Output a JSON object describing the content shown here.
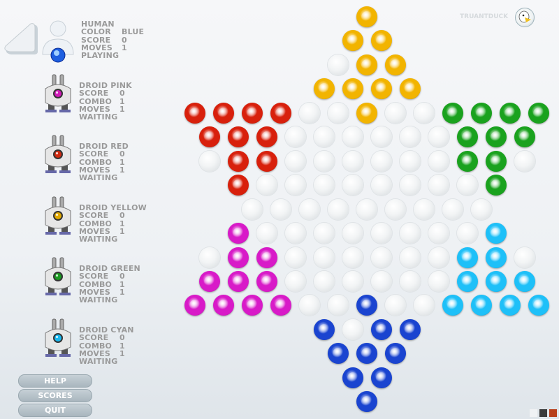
{
  "brand": {
    "label": "TRUANTDUCK",
    "icon": "duck-logo-icon"
  },
  "players": [
    {
      "name": "HUMAN",
      "rows": [
        [
          "COLOR",
          "BLUE"
        ],
        [
          "SCORE",
          "0"
        ],
        [
          "MOVES",
          "1"
        ]
      ],
      "status": "PLAYING",
      "color": "#1e5fe0",
      "avatar": "human-icon"
    },
    {
      "name": "DROID PINK",
      "rows": [
        [
          "SCORE",
          "0"
        ],
        [
          "COMBO",
          "1"
        ],
        [
          "MOVES",
          "1"
        ]
      ],
      "status": "WAITING",
      "color": "#d01ab8",
      "avatar": "droid-icon"
    },
    {
      "name": "DROID RED",
      "rows": [
        [
          "SCORE",
          "0"
        ],
        [
          "COMBO",
          "1"
        ],
        [
          "MOVES",
          "1"
        ]
      ],
      "status": "WAITING",
      "color": "#d02a10",
      "avatar": "droid-icon"
    },
    {
      "name": "DROID YELLOW",
      "rows": [
        [
          "SCORE",
          "0"
        ],
        [
          "COMBO",
          "1"
        ],
        [
          "MOVES",
          "1"
        ]
      ],
      "status": "WAITING",
      "color": "#e0a800",
      "avatar": "droid-icon"
    },
    {
      "name": "DROID GREEN",
      "rows": [
        [
          "SCORE",
          "0"
        ],
        [
          "COMBO",
          "1"
        ],
        [
          "MOVES",
          "1"
        ]
      ],
      "status": "WAITING",
      "color": "#1a9a20",
      "avatar": "droid-icon"
    },
    {
      "name": "DROID CYAN",
      "rows": [
        [
          "SCORE",
          "0"
        ],
        [
          "COMBO",
          "1"
        ],
        [
          "MOVES",
          "1"
        ]
      ],
      "status": "WAITING",
      "color": "#18b8f0",
      "avatar": "droid-icon"
    }
  ],
  "buttons": {
    "help": "HELP",
    "scores": "SCORES",
    "quit": "QUIT"
  },
  "colors": {
    "y": "#f2b400",
    "r": "#d8200c",
    "g": "#1aa21e",
    "p": "#d81ac8",
    "c": "#1ec0f8",
    "b": "#1a44d0"
  },
  "board": [
    "y",
    "yy",
    ".yy",
    "yyyy",
    "rrrr..y..gggg",
    "rrr......ggg",
    ".rr......gg.",
    "r........g",
    ".........",
    "p........c",
    ".pp......cc.",
    "ppp......ccc",
    "pppp..b..cccc",
    "b.bb",
    "bbb",
    "bb",
    "b"
  ],
  "theme_swatches": [
    "#f0f2f4",
    "#3a3a3a",
    "#b8401c"
  ]
}
